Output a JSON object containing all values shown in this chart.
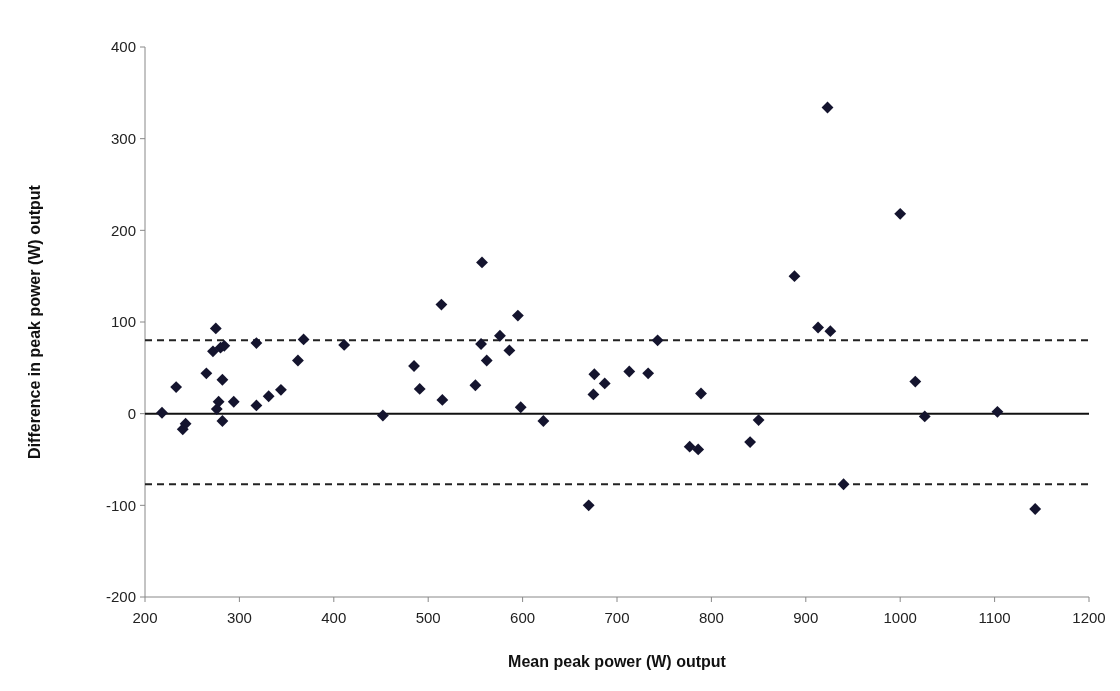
{
  "chart_data": {
    "type": "scatter",
    "xlabel": "Mean peak power (W) output",
    "ylabel": "Difference in peak power (W) output",
    "xlim": [
      200,
      1200
    ],
    "xticks": [
      200,
      300,
      400,
      500,
      600,
      700,
      800,
      900,
      1000,
      1100,
      1200
    ],
    "ylim": [
      -200,
      400
    ],
    "yticks": [
      -200,
      -100,
      0,
      100,
      200,
      300,
      400
    ],
    "grid": false,
    "marker": "diamond",
    "ref_lines": [
      {
        "axis": "y",
        "value": 0,
        "line_style": "solid",
        "color": "#111111"
      },
      {
        "axis": "y",
        "value": 80,
        "line_style": "dashed",
        "color": "#222222"
      },
      {
        "axis": "y",
        "value": -77,
        "line_style": "dashed",
        "color": "#222222"
      }
    ],
    "series": [
      {
        "color": "#14142e",
        "x": [
          218,
          233,
          240,
          243,
          265,
          275,
          272,
          280,
          284,
          282,
          278,
          276,
          282,
          294,
          318,
          318,
          331,
          344,
          362,
          368,
          411,
          452,
          485,
          491,
          514,
          515,
          550,
          557,
          556,
          562,
          576,
          586,
          595,
          598,
          622,
          670,
          676,
          675,
          687,
          713,
          733,
          743,
          777,
          786,
          789,
          841,
          850,
          888,
          913,
          926,
          923,
          940,
          1000,
          1016,
          1026,
          1103,
          1143
        ],
        "values": [
          1,
          29,
          -17,
          -11,
          44,
          93,
          68,
          72,
          74,
          37,
          13,
          5,
          -8,
          13,
          77,
          9,
          19,
          26,
          58,
          81,
          75,
          -2,
          52,
          27,
          119,
          15,
          31,
          165,
          76,
          58,
          85,
          69,
          107,
          7,
          -8,
          -100,
          43,
          21,
          33,
          46,
          44,
          80,
          -36,
          -39,
          22,
          -31,
          -7,
          150,
          94,
          90,
          334,
          -77,
          218,
          35,
          -3,
          2,
          -104
        ]
      }
    ]
  }
}
